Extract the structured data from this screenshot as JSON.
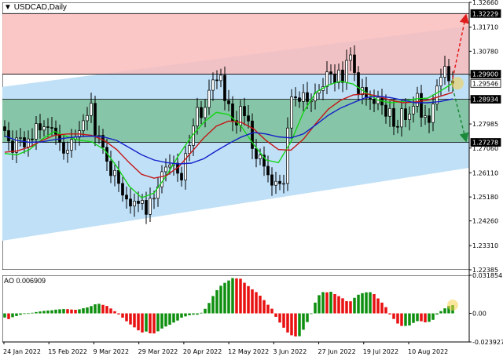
{
  "window": {
    "title": "USDCAD,Daily",
    "title_arrow": "▼"
  },
  "indicator": {
    "label": "AO 0.006909"
  },
  "colors": {
    "upper_zone": "#f9bcbc",
    "lower_zone": "#7dbf9a",
    "channel": "#bfe0f7",
    "candle": "#000000",
    "ma_green": "#16d416",
    "ma_red": "#c41515",
    "ma_blue": "#1420c8",
    "arrow_up": "#e01b1b",
    "arrow_down": "#1a8a3a",
    "ao_up": "#0f8f0f",
    "ao_down": "#e81010",
    "highlight": "#f5d24a"
  },
  "chart_data": [
    {
      "type": "candlestick",
      "title": "USDCAD,Daily",
      "ylim": [
        1.2238,
        1.3266
      ],
      "y_ticks": [
        1.3266,
        1.3171,
        1.3078,
        1.29875,
        1.2893,
        1.27985,
        1.2706,
        1.2611,
        1.2518,
        1.2426,
        1.2331,
        1.2238
      ],
      "y_tick_labels": [
        "1.32660",
        "1.31710",
        "1.30780",
        "",
        "",
        "1.27985",
        "1.27060",
        "1.26110",
        "1.25180",
        "1.24260",
        "1.23310",
        "1.22385"
      ],
      "price_labels": [
        {
          "value": 1.32229,
          "text": "1.32229",
          "style": "dark"
        },
        {
          "value": 1.299,
          "text": "1.29900",
          "style": "dark"
        },
        {
          "value": 1.29546,
          "text": "1.29546",
          "style": "light"
        },
        {
          "value": 1.28934,
          "text": "1.28934",
          "style": "dark"
        },
        {
          "value": 1.27278,
          "text": "1.27278",
          "style": "dark"
        }
      ],
      "x_tick_labels": [
        "24 Jan 2022",
        "15 Feb 2022",
        "9 Mar 2022",
        "29 Mar 2022",
        "20 Apr 2022",
        "12 May 2022",
        "3 Jun 2022",
        "27 Jun 2022",
        "19 Jul 2022",
        "10 Aug 2022"
      ],
      "levels": {
        "resistance_top": 1.32229,
        "resistance_bottom": 1.299,
        "support_top": 1.28934,
        "support_bottom": 1.27278
      },
      "channel": {
        "start": [
          1.2941,
          1.235
        ],
        "end": [
          1.3175,
          1.263
        ]
      },
      "projection": {
        "up_target": 1.3205,
        "down_target": 1.2745
      },
      "series": [
        {
          "name": "close",
          "values": [
            1.2773,
            1.2733,
            1.2689,
            1.2745,
            1.2746,
            1.271,
            1.2741,
            1.274,
            1.28,
            1.2775,
            1.2788,
            1.2785,
            1.2783,
            1.2759,
            1.2728,
            1.2686,
            1.2698,
            1.2739,
            1.2748,
            1.2773,
            1.2811,
            1.2831,
            1.2878,
            1.2755,
            1.2755,
            1.2709,
            1.2655,
            1.26,
            1.262,
            1.257,
            1.2525,
            1.251,
            1.2483,
            1.2502,
            1.2493,
            1.2505,
            1.2451,
            1.2513,
            1.2513,
            1.2557,
            1.2615,
            1.2633,
            1.2641,
            1.2648,
            1.2609,
            1.2583,
            1.2685,
            1.2716,
            1.2791,
            1.2862,
            1.2823,
            1.2862,
            1.2928,
            1.2968,
            1.2965,
            1.2986,
            1.2888,
            1.2876,
            1.2812,
            1.2794,
            1.2866,
            1.283,
            1.281,
            1.2704,
            1.2665,
            1.2679,
            1.2636,
            1.2603,
            1.2563,
            1.2578,
            1.2569,
            1.257,
            1.2783,
            1.2903,
            1.2899,
            1.2885,
            1.2919,
            1.2885,
            1.2887,
            1.2917,
            1.2927,
            1.2942,
            1.2999,
            1.2991,
            1.2957,
            1.3006,
            1.2958,
            1.3043,
            1.3064,
            1.2996,
            1.2911,
            1.2939,
            1.2898,
            1.2894,
            1.2877,
            1.2901,
            1.2871,
            1.2828,
            1.2858,
            1.2789,
            1.2787,
            1.2857,
            1.2815,
            1.2837,
            1.2867,
            1.2916,
            1.2824,
            1.283,
            1.2804,
            1.2875,
            1.2945,
            1.2978,
            1.302,
            1.2964,
            1.2955
          ]
        },
        {
          "name": "MA fast",
          "values": [
            1.2685,
            1.268,
            1.27,
            1.274,
            1.277,
            1.275,
            1.2736,
            1.273,
            1.27,
            1.2635,
            1.256,
            1.2515,
            1.2533,
            1.26,
            1.268,
            1.275,
            1.2805,
            1.2843,
            1.2835,
            1.279,
            1.272,
            1.266,
            1.265,
            1.273,
            1.2843,
            1.292,
            1.2948,
            1.2963,
            1.2952,
            1.292,
            1.289,
            1.288,
            1.2885,
            1.2895,
            1.2898,
            1.2925,
            1.2955
          ]
        },
        {
          "name": "MA medium",
          "values": [
            1.269,
            1.2695,
            1.271,
            1.2735,
            1.2755,
            1.276,
            1.276,
            1.2755,
            1.2735,
            1.27,
            1.265,
            1.2605,
            1.259,
            1.26,
            1.2635,
            1.269,
            1.2745,
            1.279,
            1.281,
            1.2805,
            1.278,
            1.2735,
            1.27,
            1.2698,
            1.274,
            1.28,
            1.2855,
            1.289,
            1.291,
            1.2915,
            1.2905,
            1.289,
            1.288,
            1.2883,
            1.289,
            1.2905,
            1.292
          ]
        },
        {
          "name": "MA slow",
          "values": [
            1.2752,
            1.2735,
            1.2728,
            1.273,
            1.2738,
            1.2745,
            1.275,
            1.2752,
            1.2748,
            1.2735,
            1.2708,
            1.268,
            1.266,
            1.265,
            1.2645,
            1.2648,
            1.2665,
            1.2695,
            1.2723,
            1.2748,
            1.2766,
            1.276,
            1.2749,
            1.2745,
            1.276,
            1.2795,
            1.2832,
            1.286,
            1.288,
            1.29,
            1.2905,
            1.29,
            1.289,
            1.288,
            1.288,
            1.2885,
            1.2895
          ]
        }
      ]
    },
    {
      "type": "bar",
      "title": "AO 0.006909",
      "ylim": [
        -0.023927,
        0.031854
      ],
      "y_tick_labels": [
        "0.031854",
        "0.00",
        "-0.023927"
      ],
      "current_value": 0.006909,
      "values": [
        -0.0035,
        -0.0048,
        -0.0032,
        -0.0022,
        -0.0012,
        -0.0005,
        0.0001,
        0.0005,
        0.0011,
        0.0016,
        0.0021,
        0.0024,
        0.0026,
        0.0031,
        0.0034,
        0.0036,
        0.0035,
        0.0032,
        0.003,
        0.0034,
        0.0043,
        0.005,
        0.0061,
        0.0076,
        0.008,
        0.0071,
        0.0062,
        0.0041,
        0.0018,
        -0.0009,
        -0.0036,
        -0.0066,
        -0.0093,
        -0.0117,
        -0.0142,
        -0.016,
        -0.0152,
        -0.0167,
        -0.0168,
        -0.015,
        -0.0127,
        -0.011,
        -0.0095,
        -0.0077,
        -0.006,
        -0.0036,
        -0.0025,
        -0.0016,
        -0.0011,
        -0.0011,
        0.0005,
        0.0038,
        0.0087,
        0.0145,
        0.0194,
        0.0231,
        0.0255,
        0.0275,
        0.0295,
        0.0292,
        0.029,
        0.0256,
        0.0228,
        0.0201,
        0.0178,
        0.0148,
        0.0111,
        0.0072,
        0.0039,
        -0.0029,
        -0.0077,
        -0.012,
        -0.016,
        -0.0183,
        -0.0193,
        -0.0191,
        -0.0137,
        -0.0073,
        -0.0001,
        0.009,
        0.0152,
        0.0178,
        0.0176,
        0.0181,
        0.0161,
        0.0144,
        0.0126,
        0.0102,
        0.0101,
        0.013,
        0.0156,
        0.0169,
        0.0176,
        0.0177,
        0.0161,
        0.0125,
        0.009,
        0.0052,
        -0.0009,
        -0.0047,
        -0.0085,
        -0.0105,
        -0.0105,
        -0.0101,
        -0.008,
        -0.0065,
        -0.0066,
        -0.0075,
        -0.0071,
        -0.0054,
        -0.001,
        0.0019,
        0.0042,
        0.0062,
        0.0069
      ]
    }
  ]
}
